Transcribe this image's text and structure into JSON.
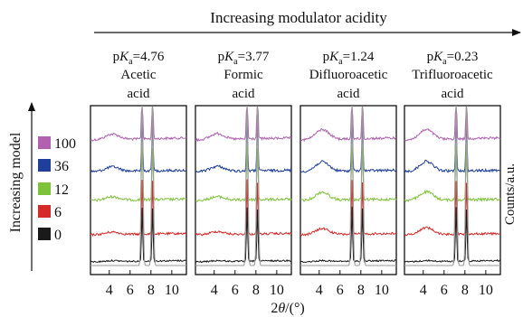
{
  "figure": {
    "top_label": "Increasing modulator acidity",
    "left_label": "Increasing model",
    "right_label": "Counts/a.u.",
    "x_label_prefix": "2",
    "x_label_theta": "θ",
    "x_label_suffix": "/(°)"
  },
  "chart_data": {
    "type": "line",
    "x_ticks": [
      4,
      6,
      8,
      10
    ],
    "xlim": [
      2.2,
      11.4
    ],
    "series": [
      {
        "name": "100",
        "color": "#b062b0"
      },
      {
        "name": "36",
        "color": "#1f3f9a"
      },
      {
        "name": "12",
        "color": "#7ec23a"
      },
      {
        "name": "6",
        "color": "#d42a2a"
      },
      {
        "name": "0",
        "color": "#1a1a1a"
      }
    ],
    "panels": [
      {
        "pka_value": "4.76",
        "acid_name": "Acetic",
        "acid_word": "acid",
        "hump": [
          0.55,
          0.45,
          0.35,
          0.25,
          0.1
        ]
      },
      {
        "pka_value": "3.77",
        "acid_name": "Formic",
        "acid_word": "acid",
        "hump": [
          0.6,
          0.5,
          0.35,
          0.3,
          0.1
        ]
      },
      {
        "pka_value": "1.24",
        "acid_name": "Difluoroacetic",
        "acid_word": "acid",
        "hump": [
          1.0,
          0.95,
          0.8,
          0.6,
          0.1
        ]
      },
      {
        "pka_value": "0.23",
        "acid_name": "Trifluoroacetic",
        "acid_word": "acid",
        "hump": [
          1.0,
          1.0,
          0.85,
          0.7,
          0.1
        ]
      }
    ],
    "grid": false
  }
}
